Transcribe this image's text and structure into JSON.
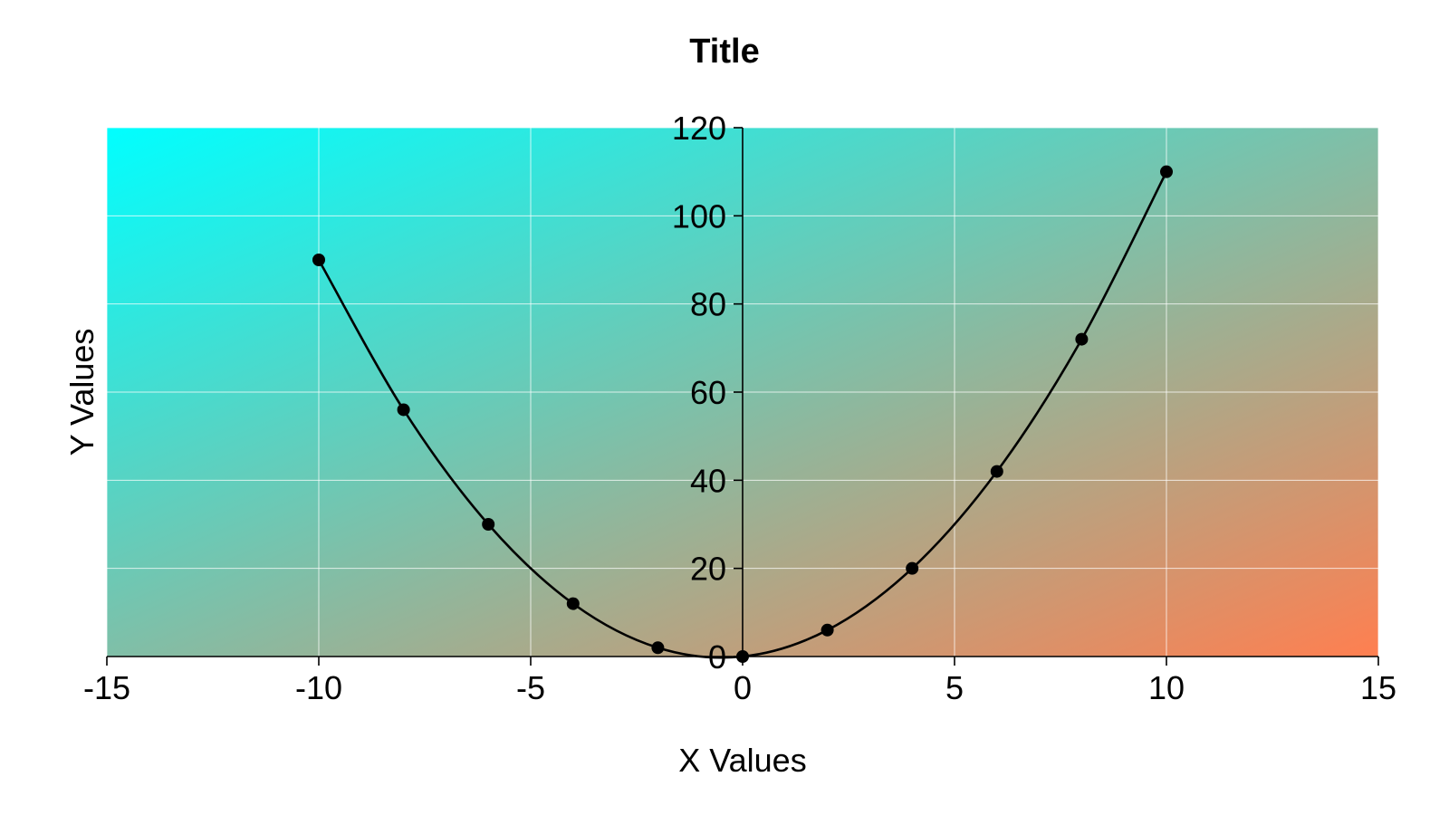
{
  "chart_data": {
    "type": "line",
    "title": "Title",
    "xlabel": "X Values",
    "ylabel": "Y Values",
    "xlim": [
      -15,
      15
    ],
    "ylim": [
      0,
      120
    ],
    "xticks": [
      "-15",
      "-10",
      "-5",
      "0",
      "5",
      "10",
      "15"
    ],
    "yticks": [
      "0",
      "20",
      "40",
      "60",
      "80",
      "100",
      "120"
    ],
    "grid": true,
    "smooth": true,
    "markers": true,
    "line_color": "#000000",
    "background_gradient": [
      "#00ffff",
      "#ff7f50"
    ],
    "grid_color": "#ffffff",
    "series": [
      {
        "x": [
          -10,
          -8,
          -6,
          -4,
          -2,
          0,
          2,
          4,
          6,
          8,
          10
        ],
        "y": [
          90,
          56,
          30,
          12,
          2,
          0,
          6,
          20,
          42,
          72,
          110
        ]
      }
    ]
  }
}
